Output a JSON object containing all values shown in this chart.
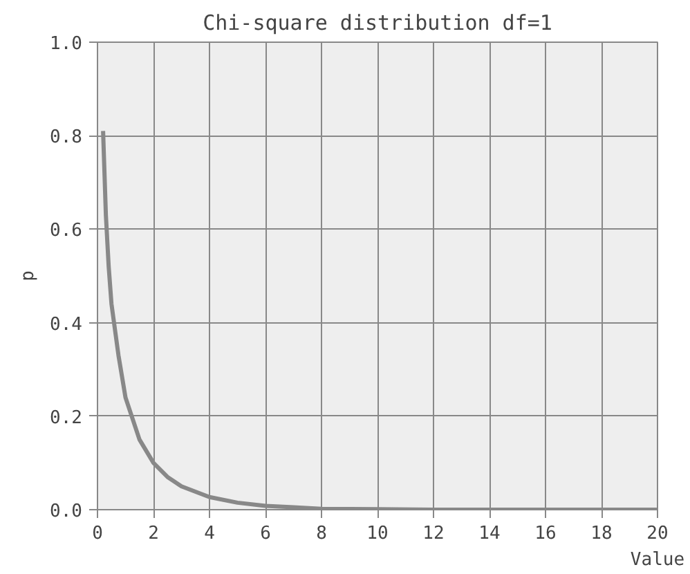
{
  "chart_data": {
    "type": "line",
    "title": "Chi-square distribution df=1",
    "xlabel": "Value",
    "ylabel": "p",
    "x": [
      0.2,
      0.3,
      0.4,
      0.5,
      0.75,
      1,
      1.5,
      2,
      2.5,
      3,
      4,
      5,
      6,
      7,
      8,
      10,
      12,
      14,
      16,
      18,
      20
    ],
    "series": [
      {
        "color": "#888888",
        "values": [
          0.81,
          0.63,
          0.52,
          0.44,
          0.33,
          0.24,
          0.15,
          0.1,
          0.07,
          0.05,
          0.027,
          0.015,
          0.008,
          0.005,
          0.002,
          0.001,
          0,
          0,
          0,
          0,
          0
        ]
      }
    ],
    "xlim": [
      0,
      20
    ],
    "ylim": [
      0,
      1
    ],
    "xticks": [
      0,
      2,
      4,
      6,
      8,
      10,
      12,
      14,
      16,
      18,
      20
    ],
    "yticks": [
      {
        "value": 0,
        "label": "0.0"
      },
      {
        "value": 0.2,
        "label": "0.2"
      },
      {
        "value": 0.4,
        "label": "0.4"
      },
      {
        "value": 0.6,
        "label": "0.6"
      },
      {
        "value": 0.8,
        "label": "0.8"
      },
      {
        "value": 1,
        "label": "1.0"
      }
    ],
    "grid": true,
    "marker": "none",
    "line_style": "solid"
  }
}
